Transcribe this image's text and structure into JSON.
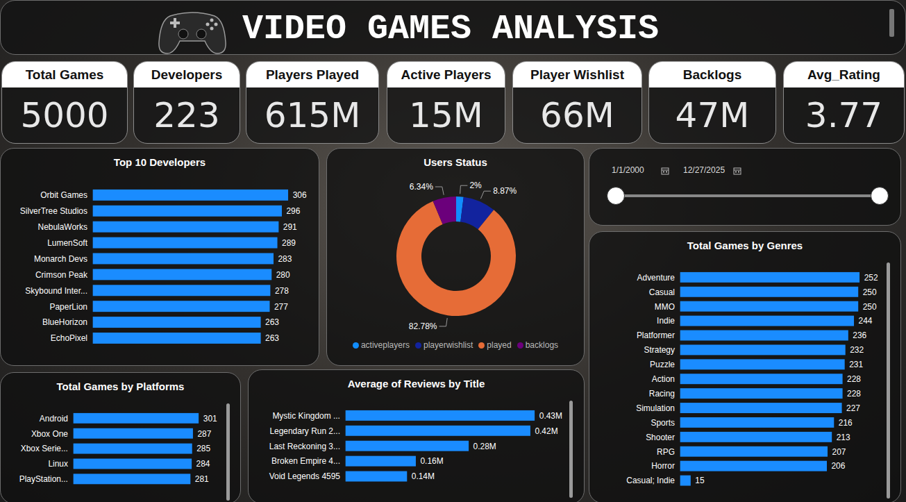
{
  "header": {
    "title": "VIDEO GAMES ANALYSIS"
  },
  "kpis": [
    {
      "label": "Total Games",
      "value": "5000"
    },
    {
      "label": "Developers",
      "value": "223"
    },
    {
      "label": "Players Played",
      "value": "615M"
    },
    {
      "label": "Active Players",
      "value": "15M"
    },
    {
      "label": "Player Wishlist",
      "value": "66M"
    },
    {
      "label": "Backlogs",
      "value": "47M"
    },
    {
      "label": "Avg_Rating",
      "value": "3.77"
    }
  ],
  "slicer": {
    "start": "1/1/2000",
    "end": "12/27/2025"
  },
  "chart_data": [
    {
      "type": "bar",
      "title": "Top 10 Developers",
      "orientation": "horizontal",
      "categories": [
        "Orbit Games",
        "SilverTree Studios",
        "NebulaWorks",
        "LumenSoft",
        "Monarch Devs",
        "Crimson Peak",
        "Skybound Inter...",
        "PaperLion",
        "BlueHorizon",
        "EchoPixel"
      ],
      "values": [
        306,
        296,
        291,
        289,
        283,
        280,
        278,
        277,
        263,
        263
      ],
      "color": "#1a8cff",
      "xlim": [
        0,
        306
      ],
      "data_labels": true,
      "tick_labels": "y"
    },
    {
      "type": "donut",
      "title": "Users Status",
      "categories": [
        "activeplayers",
        "playerwishlist",
        "played",
        "backlogs"
      ],
      "values": [
        2,
        8.87,
        82.78,
        6.34
      ],
      "value_labels": [
        "2%",
        "8.87%",
        "82.78%",
        "6.34%"
      ],
      "colors": [
        "#118dff",
        "#12239e",
        "#e66c37",
        "#6b007b"
      ],
      "data_labels": true,
      "legend": "bottom"
    },
    {
      "type": "bar",
      "title": "Total Games by Genres",
      "orientation": "horizontal",
      "categories": [
        "Adventure",
        "Casual",
        "MMO",
        "Indie",
        "Platformer",
        "Strategy",
        "Puzzle",
        "Action",
        "Racing",
        "Simulation",
        "Sports",
        "Shooter",
        "RPG",
        "Horror",
        "Casual; Indie"
      ],
      "values": [
        252,
        250,
        250,
        244,
        236,
        232,
        231,
        228,
        228,
        227,
        216,
        213,
        207,
        206,
        15
      ],
      "color": "#1a8cff",
      "xlim": [
        0,
        252
      ],
      "data_labels": true,
      "tick_labels": "y"
    },
    {
      "type": "bar",
      "title": "Total Games by Platforms",
      "orientation": "horizontal",
      "categories": [
        "Android",
        "Xbox One",
        "Xbox Serie...",
        "Linux",
        "PlayStation..."
      ],
      "values": [
        301,
        287,
        285,
        284,
        281
      ],
      "color": "#1a8cff",
      "xlim": [
        0,
        301
      ],
      "data_labels": true,
      "tick_labels": "y"
    },
    {
      "type": "bar",
      "title": "Average of Reviews by Title",
      "orientation": "horizontal",
      "categories": [
        "Mystic Kingdom ...",
        "Legendary Run 2...",
        "Last Reckoning 3...",
        "Broken Empire 4...",
        "Void Legends 4595"
      ],
      "values": [
        430000,
        420000,
        280000,
        160000,
        140000
      ],
      "value_labels": [
        "0.43M",
        "0.42M",
        "0.28M",
        "0.16M",
        "0.14M"
      ],
      "color": "#1a8cff",
      "xlim": [
        0,
        430000
      ],
      "data_labels": true,
      "tick_labels": "y"
    }
  ]
}
